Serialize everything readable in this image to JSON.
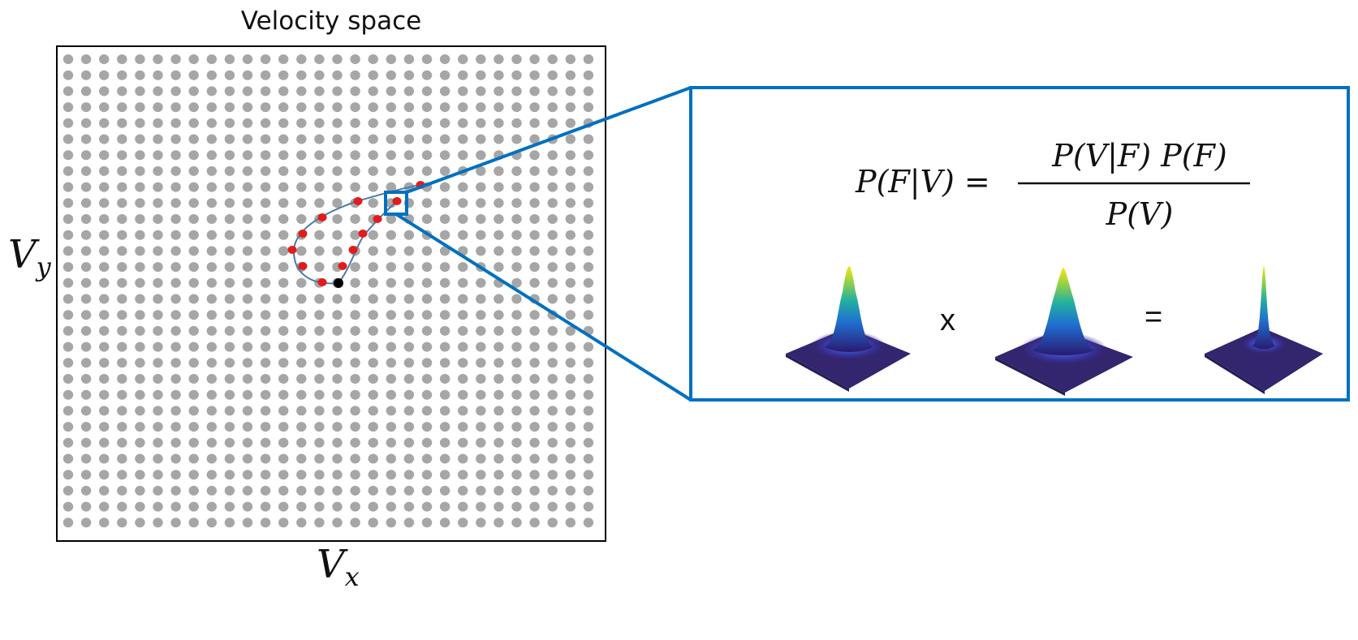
{
  "title": "Velocity space",
  "axis": {
    "x_symbol": "V",
    "x_subscript": "x",
    "y_symbol": "V",
    "y_subscript": "y"
  },
  "equation": {
    "lhs": "P(F|V) =",
    "numerator": "P(V|F) P(F)",
    "denominator": "P(V)"
  },
  "operators": {
    "times": "x",
    "equals": "="
  },
  "colors": {
    "grid_dot": "#a6a6a6",
    "trajectory_dot": "#e21b1b",
    "start_dot": "#000000",
    "trajectory_line": "#4a7aa8",
    "zoom_box": "#0070c0"
  },
  "icons": [
    "gaussian-surface-icon",
    "gaussian-surface-icon",
    "gaussian-surface-icon"
  ]
}
